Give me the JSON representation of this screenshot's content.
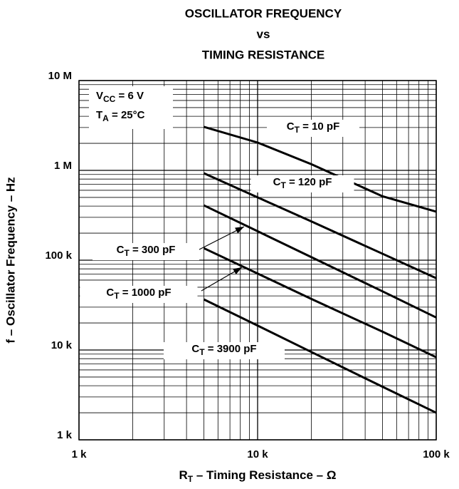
{
  "chart_data": {
    "type": "line",
    "title": [
      "OSCILLATOR FREQUENCY",
      "vs",
      "TIMING RESISTANCE"
    ],
    "xlabel": "RT – Timing Resistance – Ω",
    "ylabel": "f – Oscillator Frequency – Hz",
    "annotations": [
      "VCC = 6 V",
      "TA = 25°C"
    ],
    "x": [
      5000,
      10000,
      20000,
      50000,
      100000
    ],
    "series": [
      {
        "name": "CT = 10 pF",
        "color": "#000000",
        "values": [
          3050000,
          2040000,
          1170000,
          515000,
          347000
        ]
      },
      {
        "name": "CT = 120 pF",
        "color": "#000000",
        "values": [
          930000,
          500000,
          270000,
          118000,
          63000
        ]
      },
      {
        "name": "CT = 300 pF",
        "color": "#000000",
        "values": [
          408000,
          210000,
          108000,
          45000,
          23000
        ]
      },
      {
        "name": "CT = 1000 pF",
        "color": "#000000",
        "values": [
          136000,
          71000,
          37000,
          16000,
          8300
        ]
      },
      {
        "name": "CT = 3900 pF",
        "color": "#000000",
        "values": [
          36600,
          18700,
          9500,
          3900,
          2000
        ]
      }
    ],
    "xscale": "log",
    "yscale": "log",
    "xlim": [
      1000,
      100000
    ],
    "ylim": [
      1000,
      10000000
    ],
    "xticks": [
      {
        "value": 1000,
        "label": "1 k"
      },
      {
        "value": 10000,
        "label": "10 k"
      },
      {
        "value": 100000,
        "label": "100 k"
      }
    ],
    "yticks": [
      {
        "value": 1000,
        "label": "1 k"
      },
      {
        "value": 10000,
        "label": "10 k"
      },
      {
        "value": 100000,
        "label": "100 k"
      },
      {
        "value": 1000000,
        "label": "1 M"
      },
      {
        "value": 10000000,
        "label": "10 M"
      }
    ],
    "grid": true
  }
}
